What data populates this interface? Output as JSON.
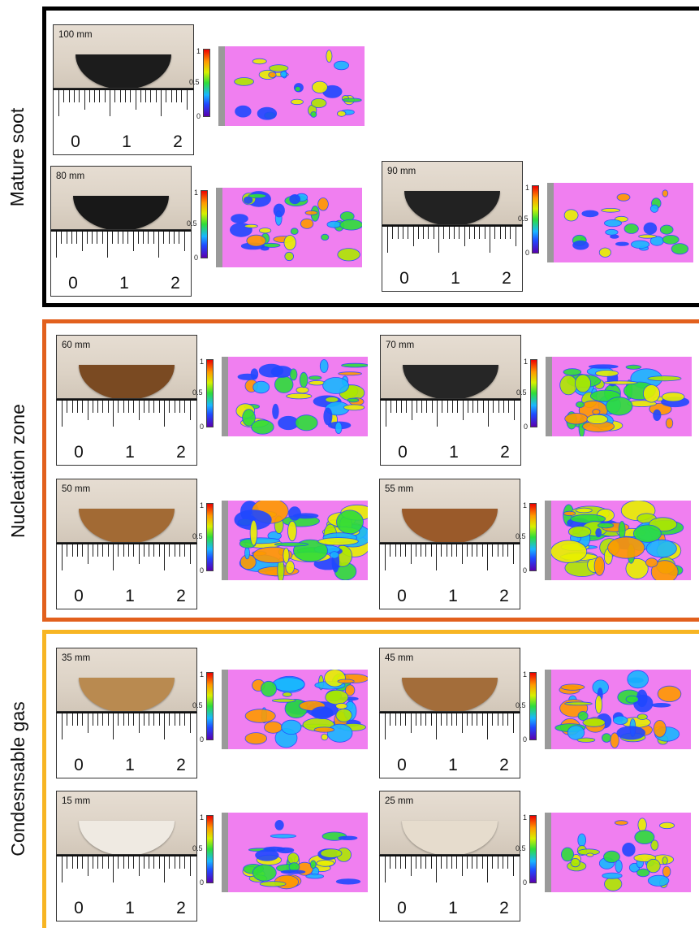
{
  "sections": [
    {
      "id": "mature",
      "label": "Mature soot",
      "color": "#000000"
    },
    {
      "id": "nucleation",
      "label": "Nucleation zone",
      "color": "#e2601d"
    },
    {
      "id": "condensable",
      "label": "Condesnsable gas",
      "color": "#f7b523"
    }
  ],
  "samples": {
    "s100": {
      "distance": "100 mm",
      "chip_color": "#1c1c1c"
    },
    "s80": {
      "distance": "80 mm",
      "chip_color": "#181818"
    },
    "s90": {
      "distance": "90 mm",
      "chip_color": "#222222"
    },
    "s60": {
      "distance": "60 mm",
      "chip_color": "#7a4a22"
    },
    "s70": {
      "distance": "70 mm",
      "chip_color": "#262626"
    },
    "s50": {
      "distance": "50 mm",
      "chip_color": "#a26a34"
    },
    "s55": {
      "distance": "55 mm",
      "chip_color": "#9a5a2a"
    },
    "s35": {
      "distance": "35 mm",
      "chip_color": "#b98a50"
    },
    "s45": {
      "distance": "45 mm",
      "chip_color": "#a36d3a"
    },
    "s15": {
      "distance": "15 mm",
      "chip_color": "#efeae2"
    },
    "s25": {
      "distance": "25 mm",
      "chip_color": "#e6dccd"
    }
  },
  "ruler": {
    "labels": [
      "0",
      "1",
      "2"
    ]
  },
  "colorbar": {
    "max": "1",
    "mid": "0.5",
    "min": "0"
  },
  "map_background": "#f07ff0"
}
